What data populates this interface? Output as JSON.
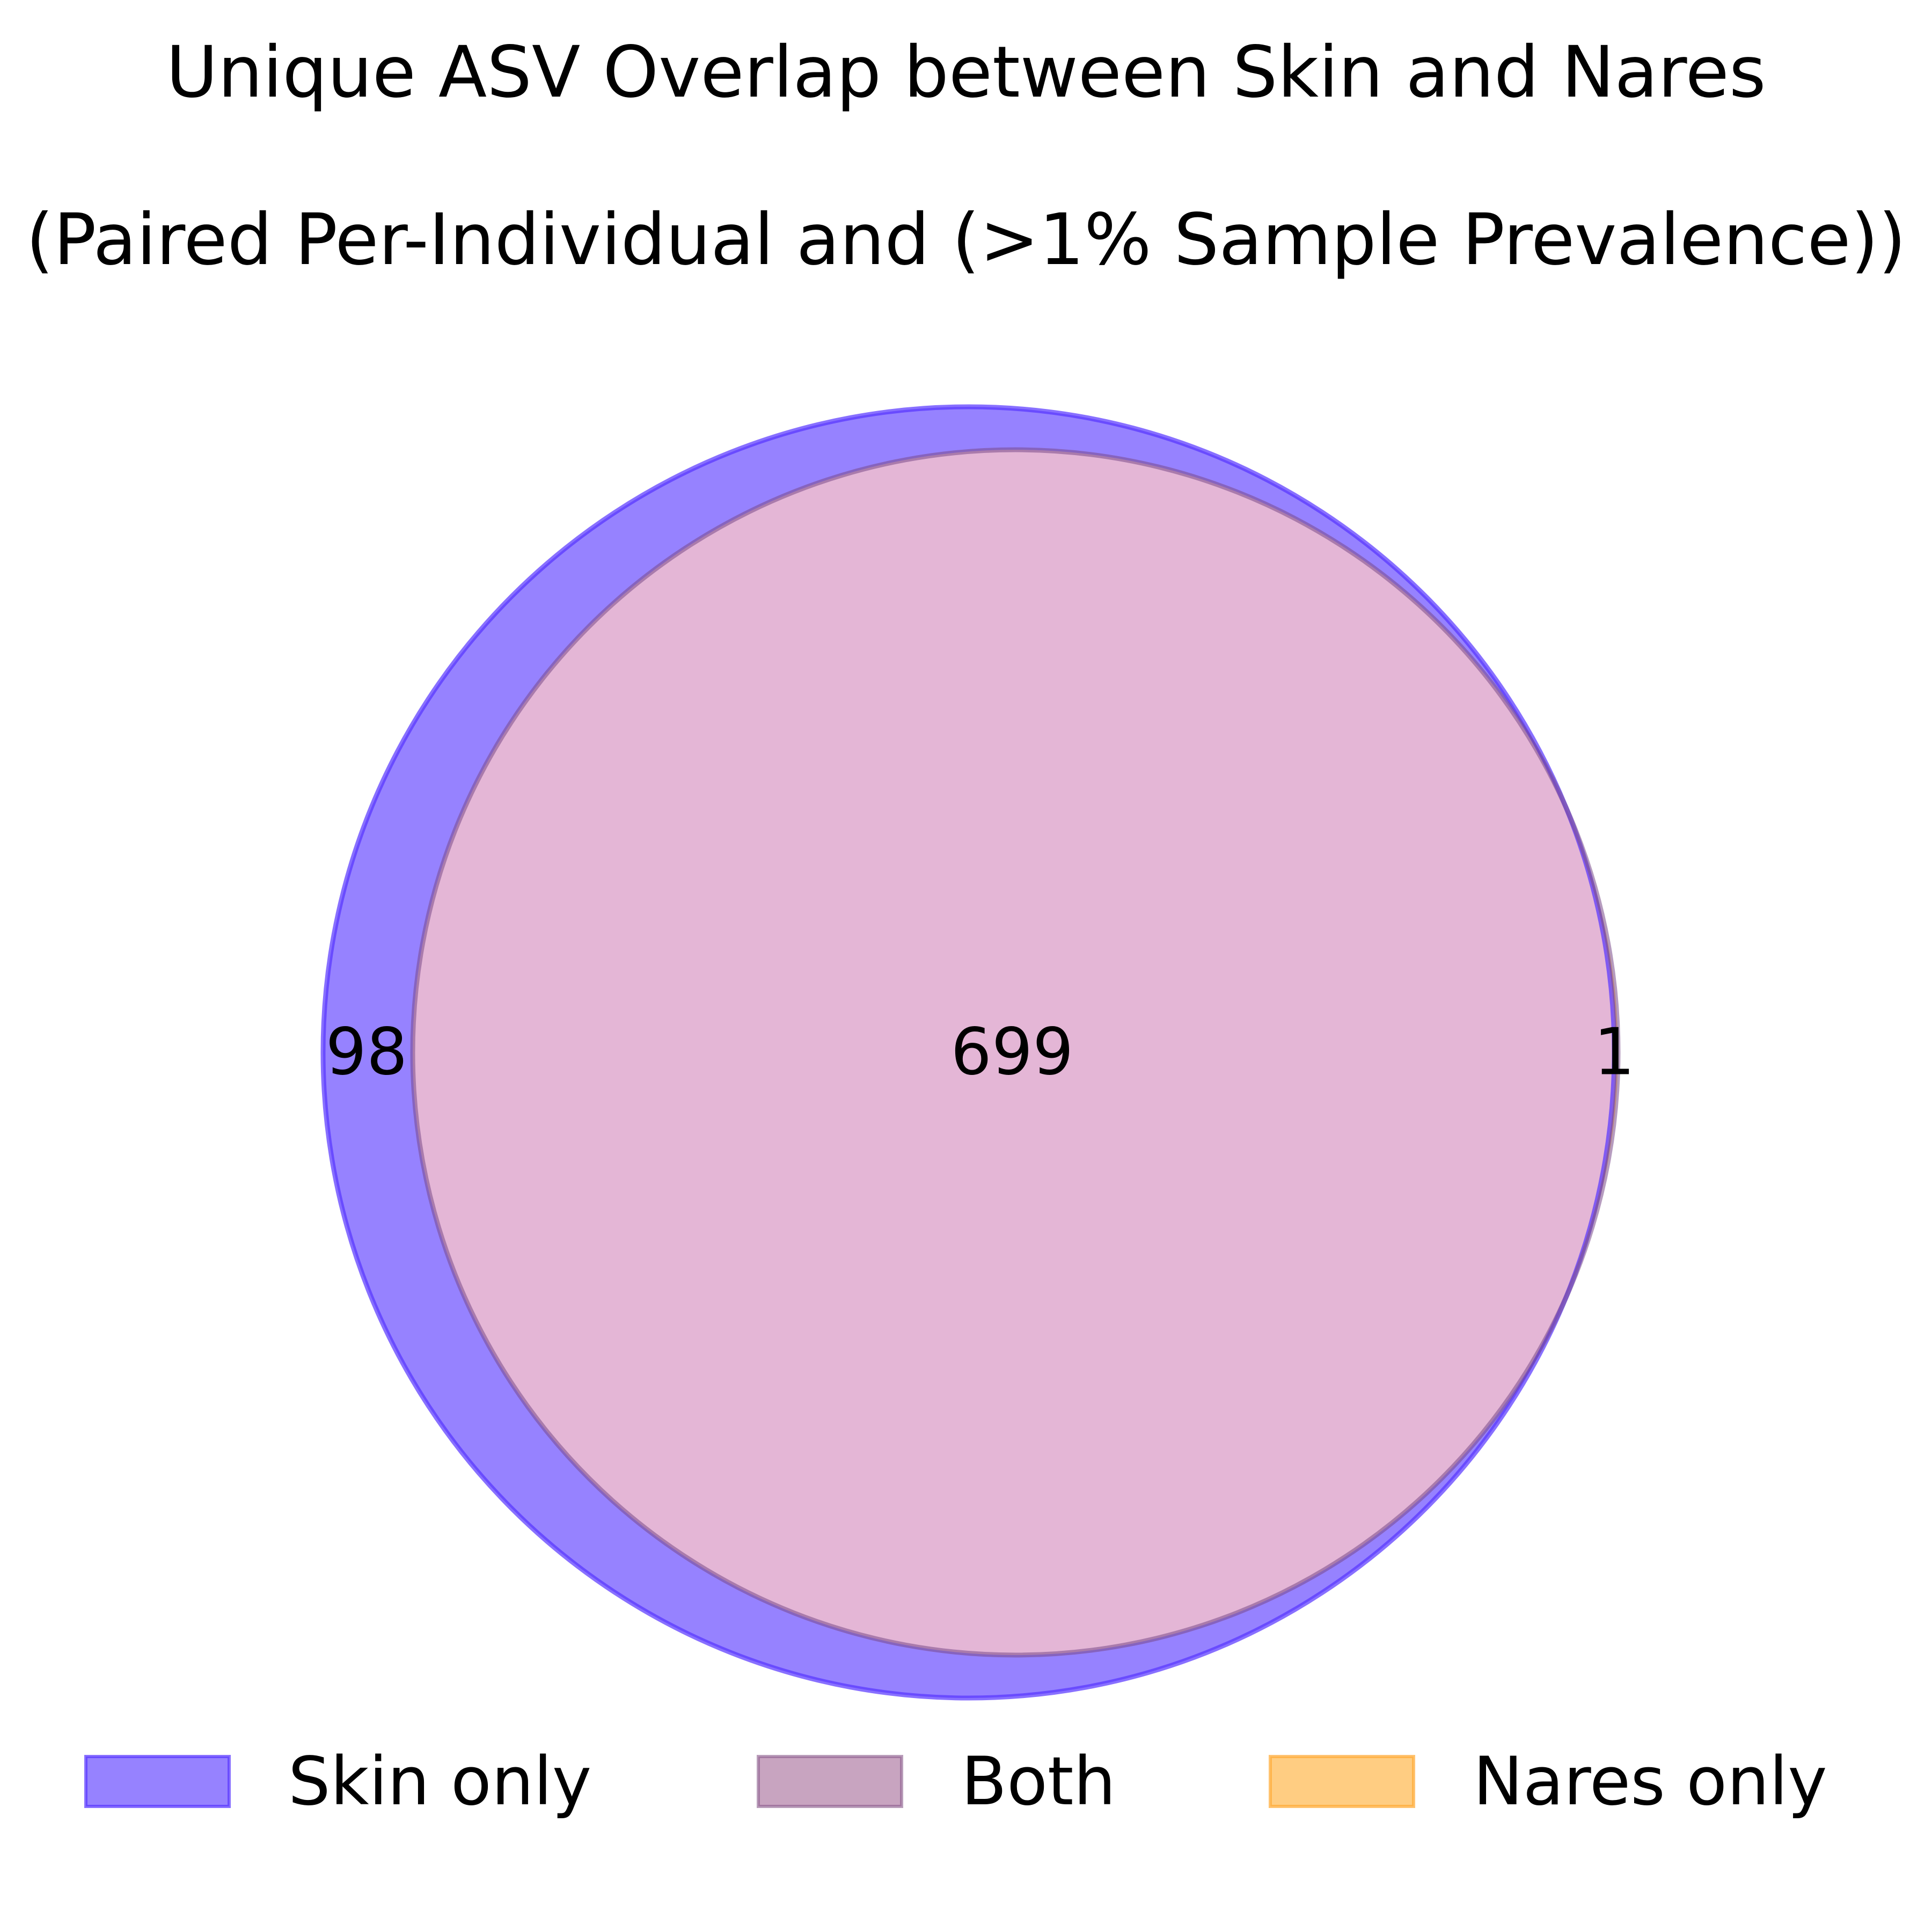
{
  "chart_data": {
    "type": "venn",
    "title": "Unique ASV Overlap between Skin and Nares",
    "subtitle": "(Paired Per-Individual and (>1% Sample Prevalence))",
    "sets": [
      {
        "name": "Skin",
        "size": 797,
        "color": "#6a4dff"
      },
      {
        "name": "Nares",
        "size": 700,
        "color": "#ffb84d"
      }
    ],
    "regions": [
      {
        "key": "skin_only",
        "label": "Skin only",
        "count": 98,
        "color": "#6a4dff"
      },
      {
        "key": "both",
        "label": "Both",
        "count": 699,
        "color": "#c8a4c0"
      },
      {
        "key": "nares_only",
        "label": "Nares only",
        "count": 1,
        "color": "#ffb84d"
      }
    ],
    "legend_position": "bottom"
  }
}
